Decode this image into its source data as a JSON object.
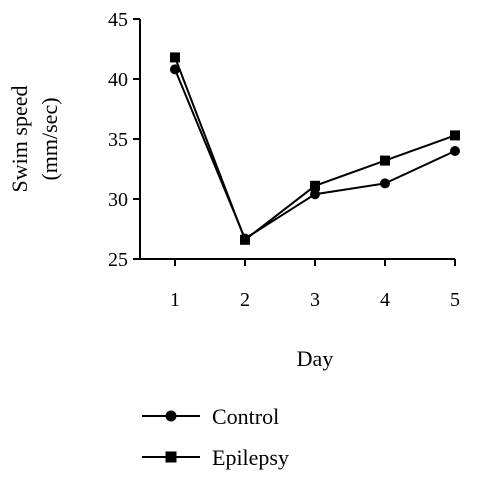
{
  "chart_data": {
    "type": "line",
    "title": "",
    "xlabel": "Day",
    "ylabel_line1": "Swim speed",
    "ylabel_line2": "(mm/sec)",
    "categories": [
      "1",
      "2",
      "3",
      "4",
      "5"
    ],
    "x": [
      1,
      2,
      3,
      4,
      5
    ],
    "ylim": [
      25,
      45
    ],
    "yticks": [
      25,
      30,
      35,
      40,
      45
    ],
    "grid": false,
    "legend_position": "bottom",
    "series": [
      {
        "name": "Control",
        "marker": "circle",
        "values": [
          40.8,
          26.7,
          30.4,
          31.3,
          34.0
        ]
      },
      {
        "name": "Epilepsy",
        "marker": "square",
        "values": [
          41.8,
          26.6,
          31.1,
          33.2,
          35.3
        ]
      }
    ]
  }
}
